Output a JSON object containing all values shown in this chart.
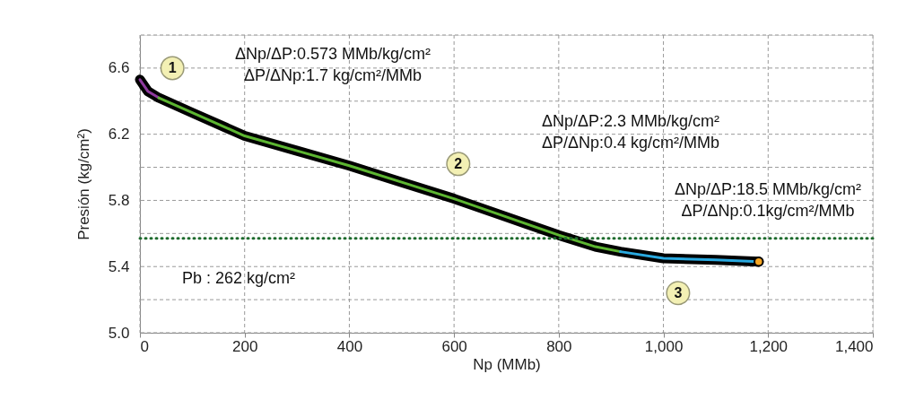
{
  "chart_data": {
    "type": "line",
    "xlabel": "Np (MMb)",
    "ylabel": "Presión (kg/cm²)",
    "xlim": [
      0,
      1400
    ],
    "ylim": [
      5.0,
      6.8
    ],
    "xticks": [
      0,
      200,
      400,
      600,
      800,
      {
        "value": 1000,
        "label": "1,000"
      },
      {
        "value": 1200,
        "label": "1,200"
      },
      {
        "value": 1400,
        "label": "1,400"
      }
    ],
    "yticks": [
      {
        "value": 5.0,
        "label": "5.0"
      },
      {
        "value": 5.2,
        "label": null
      },
      5.4,
      {
        "value": 5.6,
        "label": null
      },
      5.8,
      {
        "value": 6.0,
        "label": null
      },
      6.2,
      {
        "value": 6.4,
        "label": null
      },
      6.6,
      {
        "value": 6.8,
        "label": null
      }
    ],
    "grid": true,
    "line_style": "solid",
    "series": [
      {
        "color": "#000000",
        "x": [
          0,
          15,
          36,
          100,
          200,
          300,
          400,
          500,
          600,
          700,
          800,
          870,
          918,
          1000,
          1100,
          1182
        ],
        "values": [
          6.53,
          6.46,
          6.42,
          6.33,
          6.19,
          6.1,
          6.01,
          5.91,
          5.81,
          5.7,
          5.59,
          5.52,
          5.49,
          5.45,
          5.44,
          5.43
        ]
      },
      {
        "color": "#8e3a9e",
        "x": [
          0,
          15,
          36
        ],
        "values": [
          6.53,
          6.46,
          6.42
        ]
      },
      {
        "color": "#5cb531",
        "x": [
          36,
          100,
          200,
          300,
          400,
          500,
          600,
          700,
          800,
          870,
          918
        ],
        "values": [
          6.42,
          6.33,
          6.19,
          6.1,
          6.01,
          5.91,
          5.81,
          5.7,
          5.59,
          5.52,
          5.49
        ]
      },
      {
        "color": "#29a9e0",
        "x": [
          918,
          1000,
          1100,
          1182
        ],
        "values": [
          5.49,
          5.45,
          5.44,
          5.43
        ]
      },
      {
        "type": "scatter",
        "color": "#f5a623",
        "x": [
          1182
        ],
        "values": [
          5.43
        ]
      }
    ],
    "ref_lines": [
      {
        "axis": "y",
        "value": 5.57,
        "color": "#1e6b2e",
        "line_style": "dotted"
      }
    ],
    "annotations": [
      {
        "text": "1",
        "x": 62,
        "y": 6.6
      },
      {
        "text": "2",
        "x": 608,
        "y": 6.02
      },
      {
        "text": "3",
        "x": 1028,
        "y": 5.24
      },
      "ΔNp/ΔP:0.573  MMb/kg/cm²",
      "ΔP/ΔNp:1.7 kg/cm²/MMb",
      "ΔNp/ΔP:2.3 MMb/kg/cm²",
      "ΔP/ΔNp:0.4 kg/cm²/MMb",
      "ΔNp/ΔP:18.5 MMb/kg/cm²",
      "ΔP/ΔNp:0.1kg/cm²/MMb",
      "Pb : 262 kg/cm²"
    ]
  }
}
